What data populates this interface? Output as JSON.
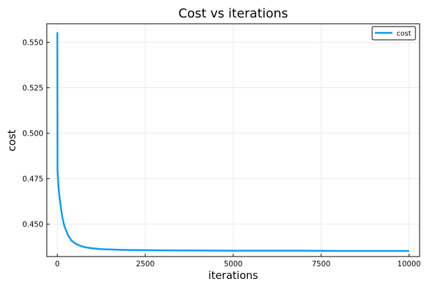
{
  "chart_data": {
    "type": "line",
    "title": "Cost vs iterations",
    "xlabel": "iterations",
    "ylabel": "cost",
    "xlim": [
      -300,
      10300
    ],
    "ylim": [
      0.4322,
      0.5602
    ],
    "xticks": [
      0,
      2500,
      5000,
      7500,
      10000
    ],
    "yticks": [
      0.45,
      0.475,
      0.5,
      0.525,
      0.55
    ],
    "xtick_labels": [
      "0",
      "2500",
      "5000",
      "7500",
      "10000"
    ],
    "ytick_labels": [
      "0.450",
      "0.475",
      "0.500",
      "0.525",
      "0.550"
    ],
    "grid": true,
    "legend_position": "top-right",
    "series": [
      {
        "name": "cost",
        "color": "#009AFA",
        "x": [
          0,
          5,
          20,
          50,
          100,
          150,
          200,
          300,
          400,
          500,
          600,
          700,
          800,
          1000,
          1250,
          1500,
          2000,
          2500,
          3000,
          4000,
          5000,
          6000,
          7000,
          8000,
          9000,
          10000
        ],
        "y": [
          0.5555,
          0.48,
          0.474,
          0.467,
          0.459,
          0.453,
          0.449,
          0.444,
          0.441,
          0.4395,
          0.4385,
          0.4378,
          0.4373,
          0.4367,
          0.4363,
          0.4361,
          0.4358,
          0.4357,
          0.4356,
          0.4355,
          0.4354,
          0.4354,
          0.4354,
          0.4353,
          0.4353,
          0.4353
        ]
      }
    ]
  }
}
